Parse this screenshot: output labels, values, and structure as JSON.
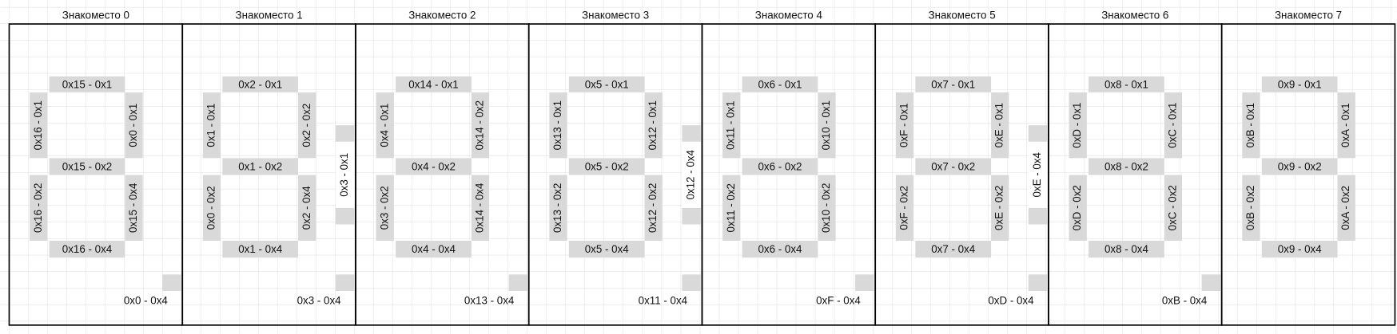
{
  "positions": [
    {
      "title": "Знакоместо 0",
      "top": "0x15 - 0x1",
      "upper_left": "0x16 - 0x1",
      "upper_right": "0x0 - 0x1",
      "middle": "0x15 - 0x2",
      "lower_left": "0x16 - 0x2",
      "lower_right": "0x15 - 0x4",
      "bottom": "0x16 - 0x4",
      "dp": "0x0 - 0x4"
    },
    {
      "title": "Знакоместо 1",
      "top": "0x2 - 0x1",
      "upper_left": "0x1 - 0x1",
      "upper_right": "0x2 - 0x2",
      "middle": "0x1 - 0x2",
      "lower_left": "0x0 - 0x2",
      "lower_right": "0x2 - 0x4",
      "bottom": "0x1 - 0x4",
      "dp": "0x3 - 0x4",
      "colon": "0x3 - 0x1"
    },
    {
      "title": "Знакоместо 2",
      "top": "0x14 - 0x1",
      "upper_left": "0x4 - 0x1",
      "upper_right": "0x14 - 0x2",
      "middle": "0x4 - 0x2",
      "lower_left": "0x3 - 0x2",
      "lower_right": "0x14 - 0x4",
      "bottom": "0x4 - 0x4",
      "dp": "0x13 - 0x4"
    },
    {
      "title": "Знакоместо 3",
      "top": "0x5 - 0x1",
      "upper_left": "0x13 - 0x1",
      "upper_right": "0x12 - 0x1",
      "middle": "0x5 - 0x2",
      "lower_left": "0x13 - 0x2",
      "lower_right": "0x12 - 0x2",
      "bottom": "0x5 - 0x4",
      "dp": "0x11 - 0x4",
      "colon": "0x12 - 0x4"
    },
    {
      "title": "Знакоместо 4",
      "top": "0x6 - 0x1",
      "upper_left": "0x11 - 0x1",
      "upper_right": "0x10 - 0x1",
      "middle": "0x6 - 0x2",
      "lower_left": "0x11 - 0x2",
      "lower_right": "0x10 - 0x2",
      "bottom": "0x6 - 0x4",
      "dp": "0xF - 0x4"
    },
    {
      "title": "Знакоместо 5",
      "top": "0x7 - 0x1",
      "upper_left": "0xF - 0x1",
      "upper_right": "0xE - 0x1",
      "middle": "0x7 - 0x2",
      "lower_left": "0xF - 0x2",
      "lower_right": "0xE - 0x2",
      "bottom": "0x7 - 0x4",
      "dp": "0xD - 0x4",
      "colon": "0xE - 0x4"
    },
    {
      "title": "Знакоместо 6",
      "top": "0x8 - 0x1",
      "upper_left": "0xD - 0x1",
      "upper_right": "0xC - 0x1",
      "middle": "0x8 - 0x2",
      "lower_left": "0xD - 0x2",
      "lower_right": "0xC - 0x2",
      "bottom": "0x8 - 0x4",
      "dp": "0xB - 0x4"
    },
    {
      "title": "Знакоместо 7",
      "top": "0x9 - 0x1",
      "upper_left": "0xB - 0x1",
      "upper_right": "0xA - 0x1",
      "middle": "0x9 - 0x2",
      "lower_left": "0xB - 0x2",
      "lower_right": "0xA - 0x2",
      "bottom": "0x9 - 0x4"
    }
  ]
}
